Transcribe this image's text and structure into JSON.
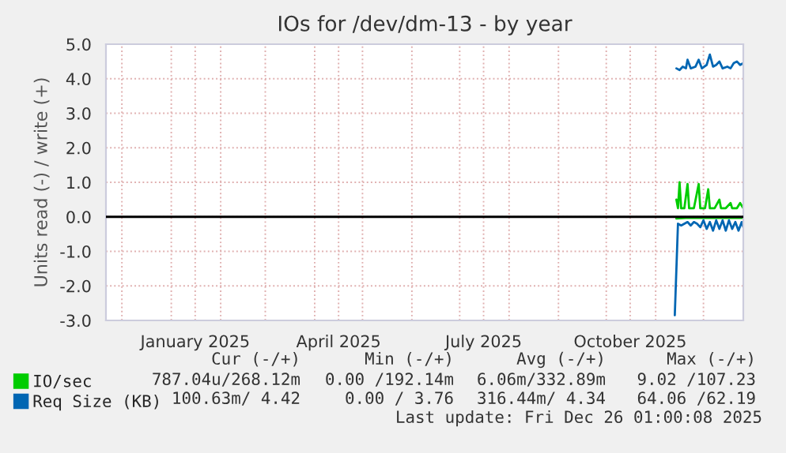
{
  "chart_data": {
    "type": "line",
    "title": "IOs for /dev/dm-13 - by year",
    "ylabel": "Units read (-) / write (+)",
    "xlim": [
      "2024-11-21",
      "2025-12-26"
    ],
    "ylim": [
      -3.0,
      5.0
    ],
    "yticks": [
      {
        "value": -3,
        "label": "-3.0"
      },
      {
        "value": -2,
        "label": "-2.0"
      },
      {
        "value": -1,
        "label": "-1.0"
      },
      {
        "value": 0,
        "label": "0.0"
      },
      {
        "value": 1,
        "label": "1.0"
      },
      {
        "value": 2,
        "label": "2.0"
      },
      {
        "value": 3,
        "label": "3.0"
      },
      {
        "value": 4,
        "label": "4.0"
      },
      {
        "value": 5,
        "label": "5.0"
      }
    ],
    "xticks": [
      {
        "value": "2024-12-01",
        "label": null
      },
      {
        "value": "2025-01-01",
        "label": null
      },
      {
        "value": "2025-01-16",
        "label": "January 2025"
      },
      {
        "value": "2025-02-01",
        "label": null
      },
      {
        "value": "2025-03-01",
        "label": null
      },
      {
        "value": "2025-04-01",
        "label": null
      },
      {
        "value": "2025-04-16",
        "label": "April 2025"
      },
      {
        "value": "2025-05-01",
        "label": null
      },
      {
        "value": "2025-06-01",
        "label": null
      },
      {
        "value": "2025-07-01",
        "label": null
      },
      {
        "value": "2025-07-16",
        "label": "July 2025"
      },
      {
        "value": "2025-08-01",
        "label": null
      },
      {
        "value": "2025-09-01",
        "label": null
      },
      {
        "value": "2025-10-01",
        "label": null
      },
      {
        "value": "2025-10-16",
        "label": "October 2025"
      },
      {
        "value": "2025-11-01",
        "label": null
      },
      {
        "value": "2025-12-01",
        "label": null
      }
    ],
    "grid": true,
    "legend": "bottom",
    "marker": "none",
    "line_style": "solid",
    "ref_lines": [
      {
        "axis": "y",
        "value": 0,
        "color": "#000000"
      }
    ],
    "series": [
      {
        "name": "IO/sec",
        "color": "#00cc00",
        "x": [
          "2025-11-14",
          "2025-11-15",
          "2025-11-16",
          "2025-11-17",
          "2025-11-19",
          "2025-11-21",
          "2025-11-22",
          "2025-11-25",
          "2025-11-28",
          "2025-11-29",
          "2025-12-02",
          "2025-12-04",
          "2025-12-05",
          "2025-12-08",
          "2025-12-11",
          "2025-12-12",
          "2025-12-15",
          "2025-12-18",
          "2025-12-19",
          "2025-12-22",
          "2025-12-24",
          "2025-12-26"
        ],
        "values": [
          0.5,
          0.25,
          1.0,
          0.25,
          0.25,
          0.95,
          0.25,
          0.25,
          0.95,
          0.25,
          0.25,
          0.8,
          0.25,
          0.25,
          0.5,
          0.25,
          0.25,
          0.4,
          0.25,
          0.25,
          0.4,
          0.25
        ]
      },
      {
        "color": "#00cc00",
        "x": [
          "2025-11-14",
          "2025-11-20",
          "2025-11-27",
          "2025-12-04",
          "2025-12-11",
          "2025-12-18",
          "2025-12-26"
        ],
        "values": [
          -0.05,
          -0.03,
          -0.03,
          -0.03,
          -0.03,
          -0.03,
          -0.03
        ]
      },
      {
        "name": "Req Size (KB)",
        "color": "#0066b3",
        "x": [
          "2025-11-14",
          "2025-11-16",
          "2025-11-18",
          "2025-11-20",
          "2025-11-21",
          "2025-11-23",
          "2025-11-26",
          "2025-11-28",
          "2025-11-30",
          "2025-12-03",
          "2025-12-05",
          "2025-12-07",
          "2025-12-09",
          "2025-12-11",
          "2025-12-13",
          "2025-12-16",
          "2025-12-18",
          "2025-12-20",
          "2025-12-22",
          "2025-12-24",
          "2025-12-26"
        ],
        "values": [
          4.3,
          4.25,
          4.35,
          4.3,
          4.55,
          4.3,
          4.35,
          4.55,
          4.3,
          4.4,
          4.7,
          4.35,
          4.4,
          4.5,
          4.3,
          4.35,
          4.3,
          4.45,
          4.5,
          4.4,
          4.45
        ]
      },
      {
        "color": "#0066b3",
        "x": [
          "2025-11-13",
          "2025-11-15",
          "2025-11-17",
          "2025-11-19",
          "2025-11-21",
          "2025-11-23",
          "2025-11-25",
          "2025-11-27",
          "2025-11-29",
          "2025-12-01",
          "2025-12-03",
          "2025-12-05",
          "2025-12-07",
          "2025-12-09",
          "2025-12-11",
          "2025-12-13",
          "2025-12-15",
          "2025-12-17",
          "2025-12-19",
          "2025-12-21",
          "2025-12-23",
          "2025-12-25",
          "2025-12-26"
        ],
        "values": [
          -2.85,
          -0.2,
          -0.25,
          -0.2,
          -0.15,
          -0.25,
          -0.15,
          -0.2,
          -0.3,
          -0.1,
          -0.35,
          -0.15,
          -0.4,
          -0.1,
          -0.35,
          -0.1,
          -0.4,
          -0.1,
          -0.35,
          -0.15,
          -0.4,
          -0.15,
          -0.3
        ]
      }
    ],
    "annotations": [
      "Cur (-/+)",
      "Min (-/+)",
      "Avg (-/+)",
      "Max (-/+)",
      "787.04u/268.12m",
      "0.00 /192.14m",
      "6.06m/332.89m",
      "9.02 /107.23",
      "100.63m/ 4.42",
      "0.00 / 3.76",
      "316.44m/ 4.34",
      "64.06 /62.19",
      "Last update: Fri Dec 26 01:00:08 2025"
    ]
  }
}
